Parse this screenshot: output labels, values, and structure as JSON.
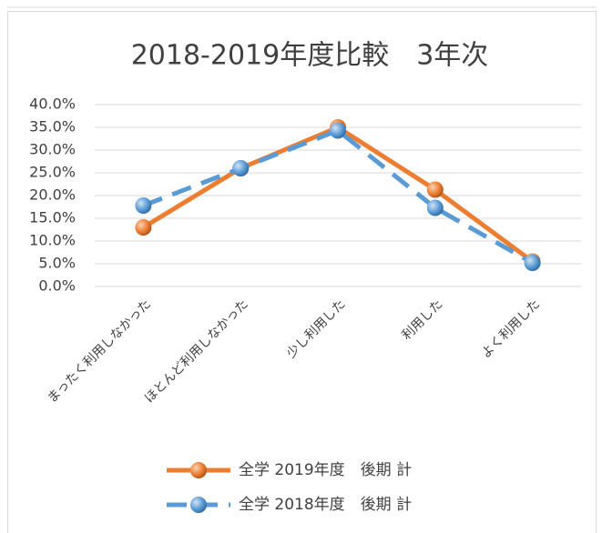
{
  "chart_data": {
    "type": "line",
    "title": "2018-2019年度比較　3年次",
    "categories": [
      "まったく利用しなかった",
      "ほとんど利用しなかった",
      "少し利用した",
      "利用した",
      "よく利用した"
    ],
    "series": [
      {
        "name": "全学 2019年度　後期 計",
        "color": "#ed7d31",
        "dashed": false,
        "values": [
          13.0,
          26.0,
          35.0,
          21.3,
          5.5
        ]
      },
      {
        "name": "全学 2018年度　後期 計",
        "color": "#5b9bd5",
        "dashed": true,
        "values": [
          17.8,
          26.0,
          34.3,
          17.3,
          5.2
        ]
      }
    ],
    "ylim": [
      0,
      40
    ],
    "yticks": [
      {
        "value": 0,
        "label": "0.0%"
      },
      {
        "value": 5,
        "label": "5.0%"
      },
      {
        "value": 10,
        "label": "10.0%"
      },
      {
        "value": 15,
        "label": "15.0%"
      },
      {
        "value": 20,
        "label": "20.0%"
      },
      {
        "value": 25,
        "label": "25.0%"
      },
      {
        "value": 30,
        "label": "30.0%"
      },
      {
        "value": 35,
        "label": "35.0%"
      },
      {
        "value": 40,
        "label": "40.0%"
      }
    ],
    "grid": true,
    "legend": "bottom"
  }
}
